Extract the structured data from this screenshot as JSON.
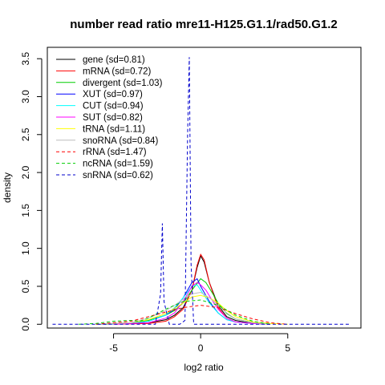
{
  "chart_data": {
    "type": "line",
    "title": "number read ratio mre11-H125.G1.1/rad50.G1.2",
    "xlabel": "log2 ratio",
    "ylabel": "density",
    "xlim": [
      -8.8,
      9.2
    ],
    "ylim": [
      -0.05,
      3.65
    ],
    "x_ticks": [
      -5,
      0,
      5
    ],
    "y_ticks": [
      0.0,
      0.5,
      1.0,
      1.5,
      2.0,
      2.5,
      3.0,
      3.5
    ],
    "grid": false,
    "legend_position": "top-left",
    "series": [
      {
        "name": "gene (sd=0.81)",
        "color": "#000000",
        "dash": "solid",
        "x": [
          -5.5,
          -3,
          -2,
          -1.5,
          -1,
          -0.5,
          -0.2,
          0,
          0.2,
          0.5,
          1,
          1.5,
          2,
          3,
          4
        ],
        "y": [
          0,
          0.02,
          0.06,
          0.12,
          0.22,
          0.45,
          0.75,
          0.9,
          0.82,
          0.55,
          0.25,
          0.1,
          0.05,
          0.01,
          0
        ]
      },
      {
        "name": "mRNA (sd=0.72)",
        "color": "#ff0000",
        "dash": "solid",
        "x": [
          -5,
          -3,
          -2,
          -1.5,
          -1,
          -0.5,
          -0.2,
          0,
          0.2,
          0.5,
          1,
          1.5,
          2,
          3,
          4
        ],
        "y": [
          0,
          0.01,
          0.04,
          0.1,
          0.2,
          0.45,
          0.78,
          0.92,
          0.85,
          0.55,
          0.22,
          0.08,
          0.03,
          0.01,
          0
        ]
      },
      {
        "name": "divergent (sd=1.03)",
        "color": "#00cd00",
        "dash": "solid",
        "x": [
          -6,
          -4,
          -3,
          -2,
          -1.5,
          -1,
          -0.5,
          0,
          0.3,
          0.7,
          1,
          1.5,
          2,
          3,
          4
        ],
        "y": [
          0,
          0.02,
          0.05,
          0.12,
          0.18,
          0.28,
          0.45,
          0.6,
          0.55,
          0.4,
          0.28,
          0.14,
          0.07,
          0.02,
          0
        ]
      },
      {
        "name": "XUT (sd=0.97)",
        "color": "#0000ff",
        "dash": "solid",
        "x": [
          -6,
          -4,
          -3,
          -2,
          -1.5,
          -1,
          -0.5,
          -0.2,
          0,
          0.5,
          1,
          1.5,
          2,
          3,
          4
        ],
        "y": [
          0,
          0.01,
          0.04,
          0.12,
          0.2,
          0.35,
          0.55,
          0.6,
          0.5,
          0.3,
          0.15,
          0.06,
          0.03,
          0.01,
          0
        ]
      },
      {
        "name": "CUT (sd=0.94)",
        "color": "#00ffff",
        "dash": "solid",
        "x": [
          -6,
          -4,
          -3,
          -2,
          -1.5,
          -1,
          -0.5,
          -0.2,
          0,
          0.5,
          1,
          1.5,
          2,
          3,
          4
        ],
        "y": [
          0,
          0.01,
          0.04,
          0.12,
          0.22,
          0.35,
          0.5,
          0.52,
          0.45,
          0.28,
          0.15,
          0.06,
          0.03,
          0.01,
          0
        ]
      },
      {
        "name": "SUT (sd=0.82)",
        "color": "#ff00ff",
        "dash": "solid",
        "x": [
          -5,
          -3,
          -2,
          -1.5,
          -1,
          -0.5,
          -0.2,
          0,
          0.3,
          0.7,
          1,
          1.5,
          2,
          3,
          4
        ],
        "y": [
          0,
          0.02,
          0.08,
          0.15,
          0.3,
          0.5,
          0.55,
          0.52,
          0.45,
          0.3,
          0.2,
          0.08,
          0.03,
          0.01,
          0
        ]
      },
      {
        "name": "tRNA (sd=1.11)",
        "color": "#ffff00",
        "dash": "solid",
        "x": [
          -6,
          -4,
          -3,
          -2,
          -1,
          -0.5,
          0,
          0.5,
          1,
          1.5,
          2,
          3,
          4,
          5
        ],
        "y": [
          0,
          0.02,
          0.06,
          0.14,
          0.28,
          0.36,
          0.38,
          0.35,
          0.28,
          0.18,
          0.1,
          0.03,
          0.01,
          0
        ]
      },
      {
        "name": "snoRNA (sd=0.84)",
        "color": "#bebebe",
        "dash": "solid",
        "x": [
          -6,
          -4,
          -3,
          -2,
          -1.5,
          -1,
          -0.5,
          0,
          0.5,
          1,
          1.5,
          2,
          3,
          4
        ],
        "y": [
          0,
          0.02,
          0.08,
          0.18,
          0.25,
          0.33,
          0.4,
          0.42,
          0.35,
          0.25,
          0.15,
          0.07,
          0.02,
          0
        ]
      },
      {
        "name": "rRNA (sd=1.47)",
        "color": "#ff0000",
        "dash": "dashed",
        "x": [
          -6,
          -4,
          -3,
          -2,
          -1,
          0,
          1,
          2,
          3,
          4,
          5
        ],
        "y": [
          0,
          0.04,
          0.1,
          0.16,
          0.22,
          0.25,
          0.22,
          0.14,
          0.07,
          0.02,
          0
        ]
      },
      {
        "name": "ncRNA (sd=1.59)",
        "color": "#00cd00",
        "dash": "dashed",
        "x": [
          -7,
          -6,
          -5,
          -4,
          -3.5,
          -3,
          -2,
          -1,
          0,
          1,
          2,
          3,
          4
        ],
        "y": [
          0,
          0.01,
          0.04,
          0.05,
          0.04,
          0.08,
          0.2,
          0.3,
          0.32,
          0.25,
          0.12,
          0.04,
          0
        ]
      },
      {
        "name": "snRNA (sd=0.62)",
        "color": "#0000cd",
        "dash": "dashed",
        "x": [
          -8.5,
          -2.6,
          -2.3,
          -2.2,
          -2.1,
          -1.8,
          -1.2,
          -0.9,
          -0.75,
          -0.65,
          -0.55,
          -0.4,
          0,
          8.6
        ],
        "y": [
          0,
          0,
          0.4,
          1.33,
          0.3,
          0,
          0,
          0.05,
          2.5,
          3.52,
          0.8,
          0,
          0,
          0
        ]
      }
    ]
  }
}
